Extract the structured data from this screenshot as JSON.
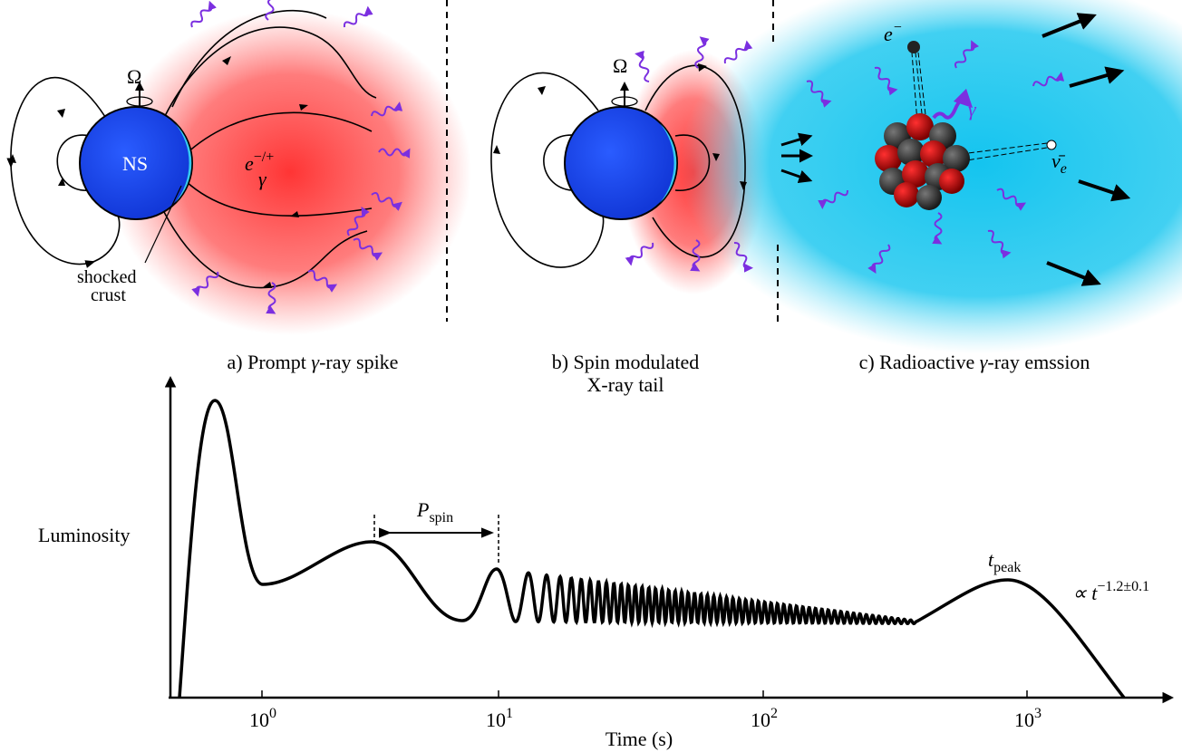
{
  "panel_a": {
    "omega": "Ω",
    "star": "NS",
    "pair": "e",
    "pair_sup": "−/+",
    "photon": "γ",
    "crust": [
      "shocked",
      "crust"
    ],
    "caption": {
      "prefix": "a) Prompt ",
      "symbol": "γ",
      "suffix": "-ray spike"
    }
  },
  "panel_b": {
    "omega": "Ω",
    "caption": [
      "b) Spin modulated",
      "X-ray tail"
    ]
  },
  "panel_c": {
    "electron": "e",
    "electron_sup": "−",
    "photon": "γ",
    "neutrino": "ν̄",
    "neutrino_sub": "e",
    "caption": {
      "prefix": "c) Radioactive ",
      "symbol": "γ",
      "suffix": "-ray emssion"
    }
  },
  "light_curve": {
    "y_label": "Luminosity",
    "x_label": "Time (s)",
    "x_ticks": [
      {
        "base": "10",
        "exp": "0"
      },
      {
        "base": "10",
        "exp": "1"
      },
      {
        "base": "10",
        "exp": "2"
      },
      {
        "base": "10",
        "exp": "3"
      }
    ],
    "period": {
      "symbol": "P",
      "sub": "spin"
    },
    "peak": {
      "symbol": "t",
      "sub": "peak"
    },
    "decay": {
      "symbol": "∝ t",
      "sup": "−1.2±0.1"
    }
  }
}
